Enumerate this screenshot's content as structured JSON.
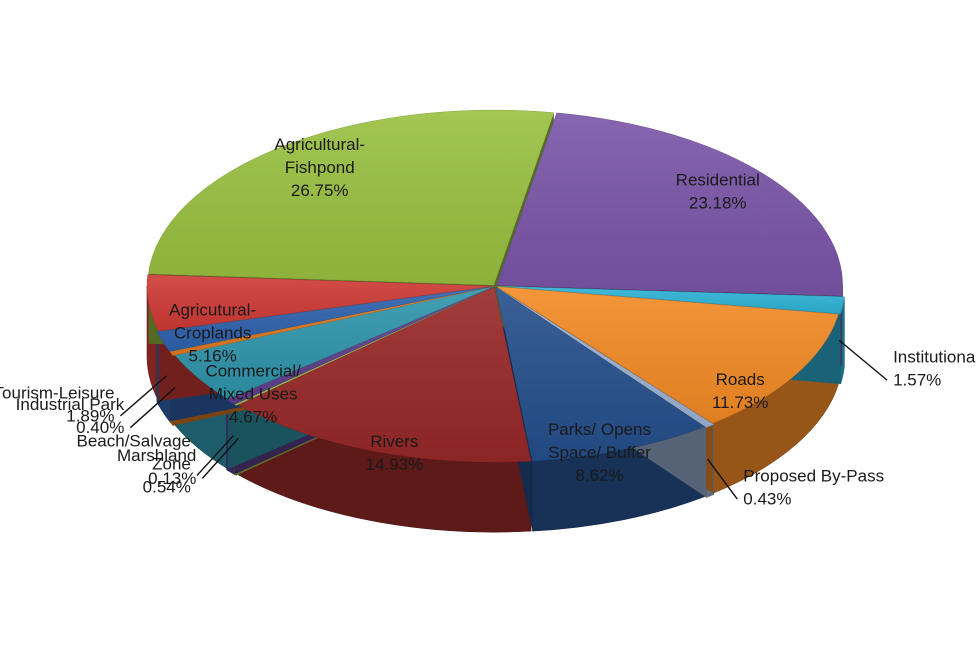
{
  "chart_data": {
    "type": "pie",
    "title": "",
    "style": "3d-exploded-slices",
    "slices": [
      {
        "label": "Residential",
        "label_lines": [
          "Residential"
        ],
        "value": 23.18,
        "value_label": "23.18%",
        "color": "#7A55A8"
      },
      {
        "label": "Institutional Facilities",
        "label_lines": [
          "Institutional Facilities"
        ],
        "value": 1.57,
        "value_label": "1.57%",
        "color": "#2FB3D6"
      },
      {
        "label": "Roads",
        "label_lines": [
          "Roads"
        ],
        "value": 11.73,
        "value_label": "11.73%",
        "color": "#F38A25"
      },
      {
        "label": "Proposed By-Pass",
        "label_lines": [
          "Proposed By-Pass"
        ],
        "value": 0.43,
        "value_label": "0.43%",
        "color": "#9DB3D4"
      },
      {
        "label": "Parks/ Opens Space/ Buffer",
        "label_lines": [
          "Parks/ Opens",
          "Space/ Buffer"
        ],
        "value": 8.62,
        "value_label": "8.62%",
        "color": "#254F8C"
      },
      {
        "label": "Rivers",
        "label_lines": [
          "Rivers"
        ],
        "value": 14.93,
        "value_label": "14.93%",
        "color": "#982828"
      },
      {
        "label": "Marshland",
        "label_lines": [
          "Marshland"
        ],
        "value": 0.13,
        "value_label": "0.13%",
        "color": "#A6C34A"
      },
      {
        "label": "Beach/Salvage Zone",
        "label_lines": [
          "Beach/Salvage",
          "Zone"
        ],
        "value": 0.54,
        "value_label": "0.54%",
        "color": "#5E3F8E"
      },
      {
        "label": "Commercial/ Mixed Uses",
        "label_lines": [
          "Commercial/",
          "Mixed Uses"
        ],
        "value": 4.67,
        "value_label": "4.67%",
        "color": "#2F95AB"
      },
      {
        "label": "Industrial Park",
        "label_lines": [
          "Industrial Park"
        ],
        "value": 0.4,
        "value_label": "0.40%",
        "color": "#E07A1F"
      },
      {
        "label": "Tourism-Leisure",
        "label_lines": [
          "Tourism-Leisure"
        ],
        "value": 1.89,
        "value_label": "1.89%",
        "color": "#2F62AE"
      },
      {
        "label": "Agricutural-Croplands",
        "label_lines": [
          "Agricutural-",
          "Croplands"
        ],
        "value": 5.16,
        "value_label": "5.16%",
        "color": "#CF3A35"
      },
      {
        "label": "Agricultural-Fishpond",
        "label_lines": [
          "Agricultural-",
          "Fishpond"
        ],
        "value": 26.75,
        "value_label": "26.75%",
        "color": "#99C040"
      }
    ]
  }
}
